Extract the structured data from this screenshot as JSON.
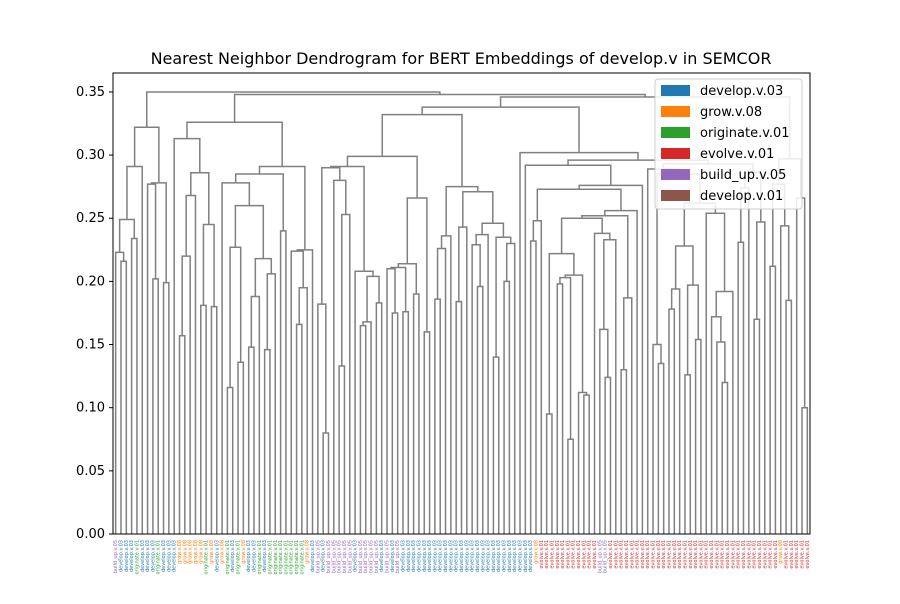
{
  "chart_data": {
    "type": "dendrogram",
    "title": "Nearest Neighbor Dendrogram for BERT Embeddings of develop.v in SEMCOR",
    "xlabel": "",
    "ylabel": "",
    "ylim": [
      0,
      0.365
    ],
    "yticks": [
      0.0,
      0.05,
      0.1,
      0.15,
      0.2,
      0.25,
      0.3,
      0.35
    ],
    "ytick_labels": [
      "0.00",
      "0.05",
      "0.10",
      "0.15",
      "0.20",
      "0.25",
      "0.30",
      "0.35"
    ],
    "grid": false,
    "legend_position": "top-right",
    "link_color": "#808080",
    "legend": [
      {
        "label": "develop.v.03",
        "color": "#1f77b4"
      },
      {
        "label": "grow.v.08",
        "color": "#ff7f0e"
      },
      {
        "label": "originate.v.01",
        "color": "#2ca02c"
      },
      {
        "label": "evolve.v.01",
        "color": "#d62728"
      },
      {
        "label": "build_up.v.05",
        "color": "#9467bd"
      },
      {
        "label": "develop.v.01",
        "color": "#8c564b"
      }
    ],
    "leaf_sense_sequence": [
      "build_up.v.05",
      "develop.v.03",
      "develop.v.03",
      "develop.v.03",
      "originate.v.01",
      "develop.v.03",
      "develop.v.03",
      "develop.v.03",
      "originate.v.01",
      "develop.v.03",
      "develop.v.03",
      "develop.v.03",
      "grow.v.08",
      "grow.v.08",
      "grow.v.08",
      "grow.v.08",
      "grow.v.08",
      "originate.v.01",
      "grow.v.08",
      "develop.v.03",
      "grow.v.08",
      "originate.v.01",
      "develop.v.03",
      "originate.v.01",
      "grow.v.08",
      "develop.v.03",
      "develop.v.03",
      "originate.v.01",
      "develop.v.03",
      "originate.v.01",
      "originate.v.01",
      "originate.v.01",
      "originate.v.01",
      "originate.v.01",
      "originate.v.01",
      "originate.v.01",
      "grow.v.08",
      "develop.v.03",
      "build_up.v.05",
      "develop.v.03",
      "build_up.v.05",
      "build_up.v.05",
      "build_up.v.05",
      "build_up.v.05",
      "build_up.v.05",
      "develop.v.03",
      "build_up.v.05",
      "build_up.v.05",
      "build_up.v.05",
      "build_up.v.05",
      "develop.v.03",
      "build_up.v.05",
      "develop.v.03",
      "build_up.v.05",
      "develop.v.03",
      "develop.v.03",
      "develop.v.03",
      "develop.v.03",
      "develop.v.03",
      "develop.v.03",
      "develop.v.03",
      "develop.v.03",
      "develop.v.03",
      "develop.v.03",
      "develop.v.03",
      "develop.v.03",
      "develop.v.03",
      "develop.v.03",
      "develop.v.03",
      "develop.v.03",
      "develop.v.03",
      "develop.v.03",
      "develop.v.03",
      "develop.v.03",
      "develop.v.03",
      "develop.v.03",
      "develop.v.03",
      "develop.v.03",
      "develop.v.03",
      "grow.v.08",
      "evolve.v.01",
      "evolve.v.01",
      "evolve.v.01",
      "evolve.v.01",
      "evolve.v.01",
      "evolve.v.01",
      "evolve.v.01",
      "evolve.v.01",
      "evolve.v.01",
      "evolve.v.01",
      "evolve.v.01",
      "build_up.v.05",
      "build_up.v.05",
      "evolve.v.01",
      "evolve.v.01",
      "evolve.v.01",
      "evolve.v.01",
      "evolve.v.01",
      "evolve.v.01",
      "evolve.v.01",
      "evolve.v.01",
      "evolve.v.01",
      "evolve.v.01",
      "evolve.v.01",
      "evolve.v.01",
      "evolve.v.01",
      "evolve.v.01",
      "evolve.v.01",
      "evolve.v.01",
      "evolve.v.01",
      "evolve.v.01",
      "evolve.v.01",
      "evolve.v.01",
      "evolve.v.01",
      "evolve.v.01",
      "evolve.v.01",
      "evolve.v.01",
      "evolve.v.01",
      "evolve.v.01",
      "evolve.v.01",
      "evolve.v.01",
      "evolve.v.01",
      "evolve.v.01",
      "evolve.v.01",
      "evolve.v.01",
      "grow.v.08",
      "evolve.v.01",
      "evolve.v.01",
      "evolve.v.01",
      "evolve.v.01",
      "evolve.v.01"
    ],
    "merge_heights": [
      0.346,
      0.338,
      0.332,
      0.326,
      0.322,
      0.313,
      0.302,
      0.299,
      0.297,
      0.296,
      0.293,
      0.292,
      0.291,
      0.291,
      0.29,
      0.29,
      0.289,
      0.286,
      0.286,
      0.285,
      0.285,
      0.28,
      0.278,
      0.278,
      0.277,
      0.277,
      0.276,
      0.275,
      0.274,
      0.273,
      0.271,
      0.268,
      0.266,
      0.266,
      0.262,
      0.26,
      0.256,
      0.254,
      0.253,
      0.252,
      0.25,
      0.249,
      0.248,
      0.247,
      0.246,
      0.245,
      0.244,
      0.243,
      0.24,
      0.238,
      0.237,
      0.236,
      0.235,
      0.234,
      0.233,
      0.232,
      0.231,
      0.23,
      0.229,
      0.228,
      0.227,
      0.226,
      0.225,
      0.224,
      0.223,
      0.222,
      0.22,
      0.218,
      0.216,
      0.214,
      0.212,
      0.211,
      0.21,
      0.208,
      0.206,
      0.205,
      0.204,
      0.203,
      0.202,
      0.2,
      0.199,
      0.198,
      0.197,
      0.196,
      0.195,
      0.194,
      0.192,
      0.19,
      0.188,
      0.187,
      0.186,
      0.185,
      0.184,
      0.183,
      0.182,
      0.181,
      0.18,
      0.178,
      0.176,
      0.175,
      0.172,
      0.17,
      0.168,
      0.166,
      0.165,
      0.162,
      0.16,
      0.157,
      0.154,
      0.152,
      0.15,
      0.148,
      0.146,
      0.14,
      0.136,
      0.135,
      0.133,
      0.13,
      0.126,
      0.124,
      0.12,
      0.116,
      0.112,
      0.11,
      0.1,
      0.095,
      0.08,
      0.075
    ]
  }
}
